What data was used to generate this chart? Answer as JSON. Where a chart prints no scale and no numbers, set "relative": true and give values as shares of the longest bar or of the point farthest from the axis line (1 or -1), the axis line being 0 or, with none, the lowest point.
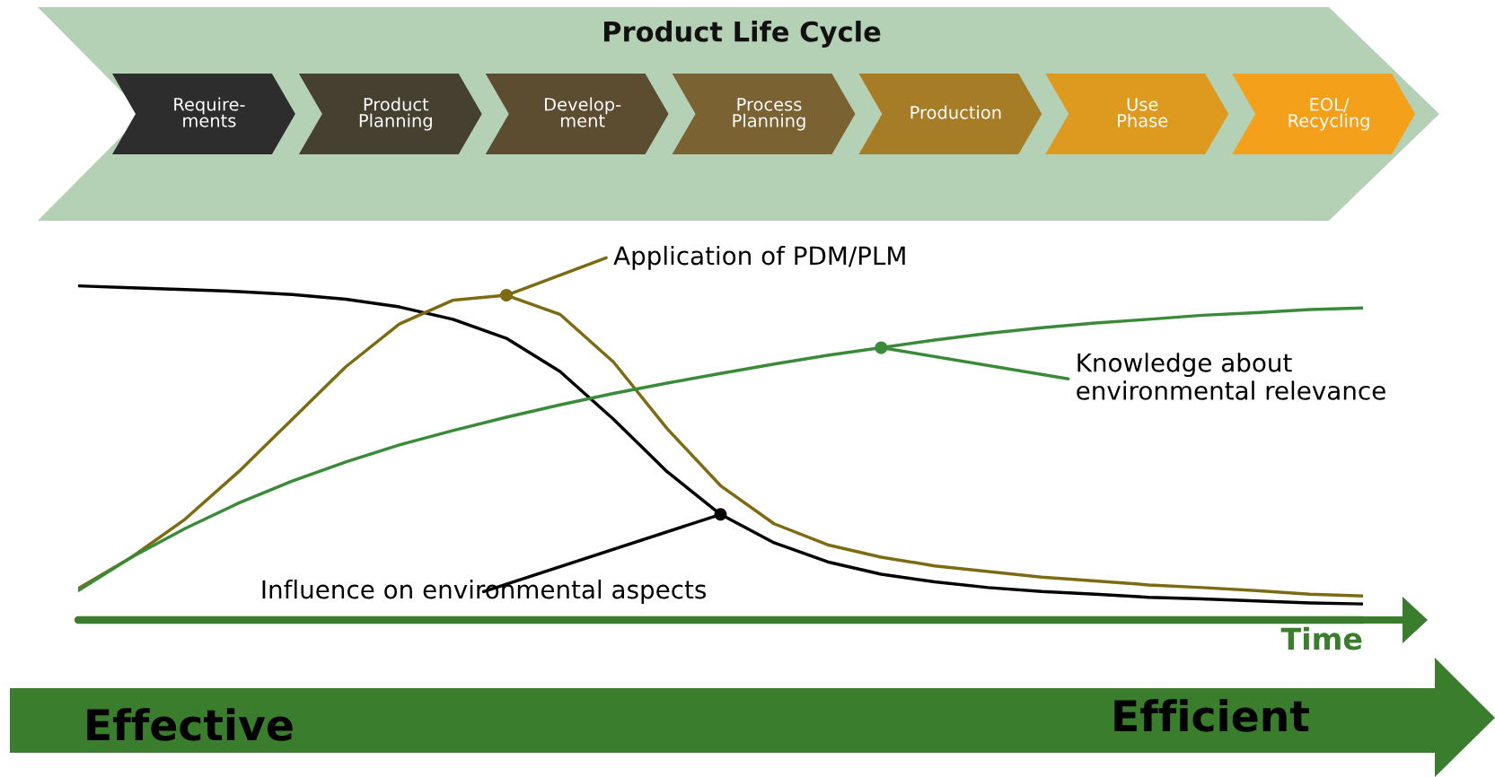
{
  "chart_data": {
    "type": "line",
    "title": "Product Life Cycle",
    "xlabel": "Time",
    "relative": true,
    "legend": false,
    "grid": false,
    "categories": [
      null,
      null,
      null,
      null,
      null,
      null,
      null,
      null,
      null,
      null,
      null,
      null,
      null,
      null,
      null,
      null,
      null,
      null,
      null,
      null,
      null,
      null,
      null,
      null,
      null
    ],
    "series": [
      {
        "name": "Influence on environmental aspects",
        "color": "#000000",
        "values": [
          1,
          0.994,
          0.989,
          0.983,
          0.974,
          0.96,
          0.937,
          0.9,
          0.843,
          0.744,
          0.601,
          0.444,
          0.316,
          0.231,
          0.174,
          0.137,
          0.114,
          0.097,
          0.085,
          0.077,
          0.068,
          0.063,
          0.057,
          0.051,
          0.048
        ]
      },
      {
        "name": "Application of PDM/PLM",
        "color": "#7d6b14",
        "values": [
          0.094,
          0.188,
          0.302,
          0.444,
          0.601,
          0.758,
          0.886,
          0.957,
          0.972,
          0.915,
          0.772,
          0.573,
          0.402,
          0.288,
          0.225,
          0.188,
          0.162,
          0.145,
          0.128,
          0.117,
          0.105,
          0.097,
          0.088,
          0.077,
          0.072
        ]
      },
      {
        "name": "Knowledge about\nenvironmental relevance",
        "color": "#3a8a3a",
        "values": [
          0.088,
          0.188,
          0.274,
          0.35,
          0.416,
          0.473,
          0.524,
          0.567,
          0.607,
          0.644,
          0.678,
          0.709,
          0.738,
          0.766,
          0.792,
          0.815,
          0.838,
          0.858,
          0.875,
          0.889,
          0.9,
          0.912,
          0.92,
          0.929,
          0.934
        ]
      }
    ],
    "annotations": [
      "Require-\nments",
      "Product\nPlanning",
      "Develop-\nment",
      "Process\nPlanning",
      "Production",
      "Use\nPhase",
      "EOL/\nRecycling",
      "Effective",
      "Efficient"
    ]
  }
}
